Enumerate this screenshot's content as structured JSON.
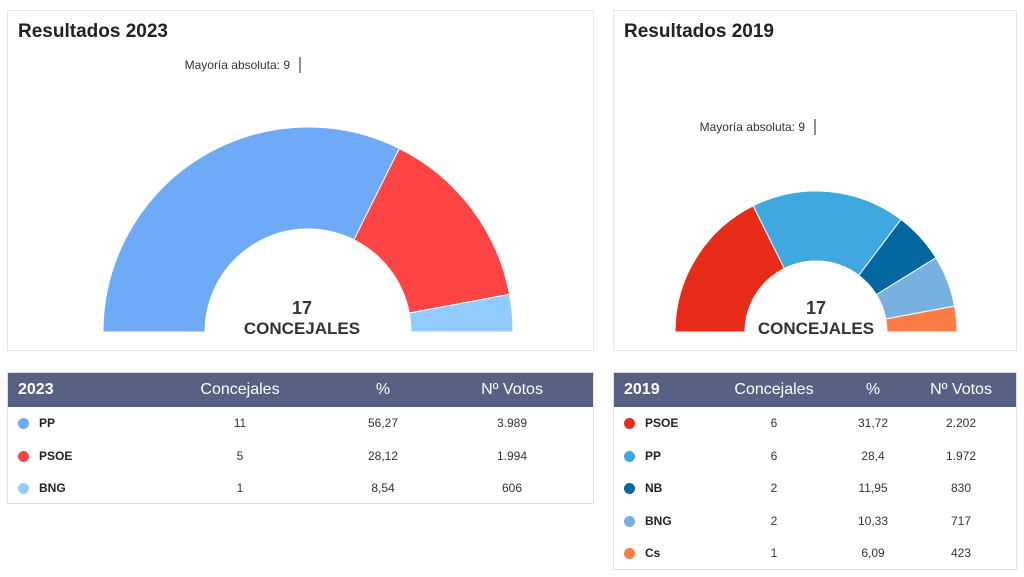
{
  "chart_data": [
    {
      "type": "pie",
      "title": "Resultados 2023",
      "center_label": {
        "number": "17",
        "text": "CONCEJALES"
      },
      "majority_label": "Mayoría absoluta: 9",
      "slices": [
        {
          "name": "PP",
          "seats": 11,
          "color": "#6eaaf7"
        },
        {
          "name": "PSOE",
          "seats": 5,
          "color": "#fd4545"
        },
        {
          "name": "BNG",
          "seats": 1,
          "color": "#91cbff"
        }
      ]
    },
    {
      "type": "pie",
      "title": "Resultados 2019",
      "center_label": {
        "number": "17",
        "text": "CONCEJALES"
      },
      "majority_label": "Mayoría absoluta: 9",
      "slices": [
        {
          "name": "PSOE",
          "seats": 6,
          "color": "#e72d1a"
        },
        {
          "name": "PP",
          "seats": 6,
          "color": "#40a8e0"
        },
        {
          "name": "NB",
          "seats": 2,
          "color": "#04679f"
        },
        {
          "name": "BNG",
          "seats": 2,
          "color": "#78b0e0"
        },
        {
          "name": "Cs",
          "seats": 1,
          "color": "#fa7d45"
        }
      ]
    },
    {
      "type": "table",
      "headers": [
        "2023",
        "Concejales",
        "%",
        "Nº Votos"
      ],
      "rows": [
        {
          "party": "PP",
          "color": "#6eaaf7",
          "seats": "11",
          "pct": "56,27",
          "votes": "3.989"
        },
        {
          "party": "PSOE",
          "color": "#fd4545",
          "seats": "5",
          "pct": "28,12",
          "votes": "1.994"
        },
        {
          "party": "BNG",
          "color": "#91cbff",
          "seats": "1",
          "pct": "8,54",
          "votes": "606"
        }
      ]
    },
    {
      "type": "table",
      "headers": [
        "2019",
        "Concejales",
        "%",
        "Nº Votos"
      ],
      "rows": [
        {
          "party": "PSOE",
          "color": "#e72d1a",
          "seats": "6",
          "pct": "31,72",
          "votes": "2.202"
        },
        {
          "party": "PP",
          "color": "#40a8e0",
          "seats": "6",
          "pct": "28,4",
          "votes": "1.972"
        },
        {
          "party": "NB",
          "color": "#04679f",
          "seats": "2",
          "pct": "11,95",
          "votes": "830"
        },
        {
          "party": "BNG",
          "color": "#78b0e0",
          "seats": "2",
          "pct": "10,33",
          "votes": "717"
        },
        {
          "party": "Cs",
          "color": "#fa7d45",
          "seats": "1",
          "pct": "6,09",
          "votes": "423"
        }
      ]
    }
  ]
}
